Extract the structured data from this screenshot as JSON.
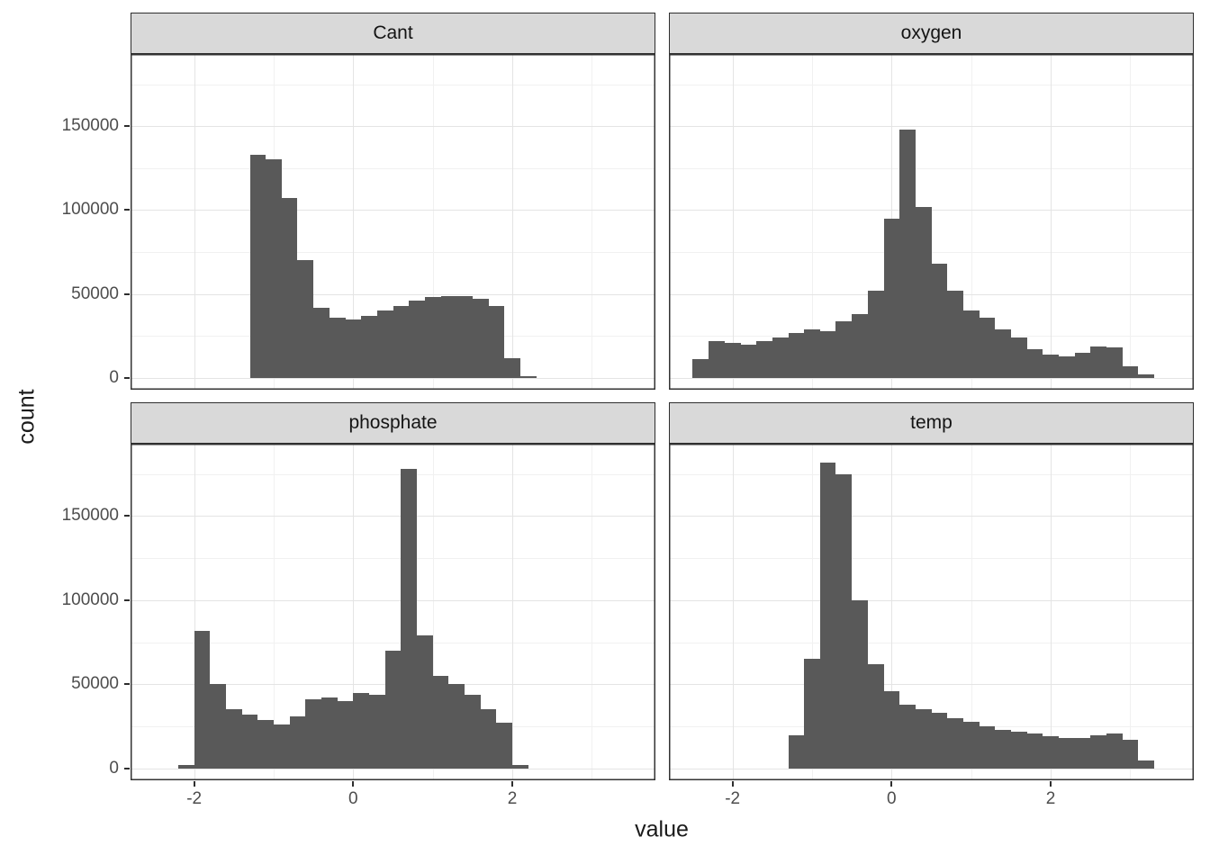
{
  "chart_data": {
    "type": "histogram",
    "faceted": true,
    "facet_labels": [
      "Cant",
      "oxygen",
      "phosphate",
      "temp"
    ],
    "xlabel": "value",
    "ylabel": "count",
    "x_ticks": [
      -2,
      0,
      2
    ],
    "x_minor": [
      -1,
      1,
      3
    ],
    "y_ticks": [
      0,
      50000,
      100000,
      150000
    ],
    "y_minor": [
      25000,
      75000,
      125000,
      175000
    ],
    "xlim": [
      -2.8,
      3.8
    ],
    "ylim": [
      -7000,
      193000
    ],
    "binwidth": 0.2,
    "legend": "none",
    "grid": "on",
    "colors": {
      "bar": "#595959",
      "strip_bg": "#d9d9d9",
      "panel_border": "#333333",
      "grid_major": "#e4e4e4",
      "grid_minor": "#f1f1f1",
      "tick_text": "#4d4d4d",
      "axis_title_text": "#1a1a1a"
    },
    "panels": [
      {
        "facet": "Cant",
        "start": -1.3,
        "counts": [
          133000,
          130000,
          107000,
          70000,
          42000,
          36000,
          35000,
          37000,
          40000,
          43000,
          46000,
          48000,
          49000,
          49000,
          47000,
          43000,
          12000,
          1000
        ]
      },
      {
        "facet": "oxygen",
        "start": -2.5,
        "counts": [
          11000,
          22000,
          21000,
          20000,
          22000,
          24000,
          27000,
          29000,
          28000,
          34000,
          38000,
          52000,
          95000,
          148000,
          102000,
          68000,
          52000,
          40000,
          36000,
          29000,
          24000,
          17000,
          14000,
          13000,
          15000,
          19000,
          18000,
          7000,
          2000
        ]
      },
      {
        "facet": "phosphate",
        "start": -2.2,
        "counts": [
          2000,
          82000,
          50000,
          35000,
          32000,
          29000,
          26000,
          31000,
          41000,
          42000,
          40000,
          45000,
          44000,
          70000,
          178000,
          79000,
          55000,
          50000,
          44000,
          35000,
          27000,
          2000
        ]
      },
      {
        "facet": "temp",
        "start": -1.3,
        "counts": [
          20000,
          65000,
          182000,
          175000,
          100000,
          62000,
          46000,
          38000,
          35000,
          33000,
          30000,
          28000,
          25000,
          23000,
          22000,
          21000,
          19000,
          18000,
          18000,
          20000,
          21000,
          17000,
          5000
        ]
      }
    ]
  }
}
